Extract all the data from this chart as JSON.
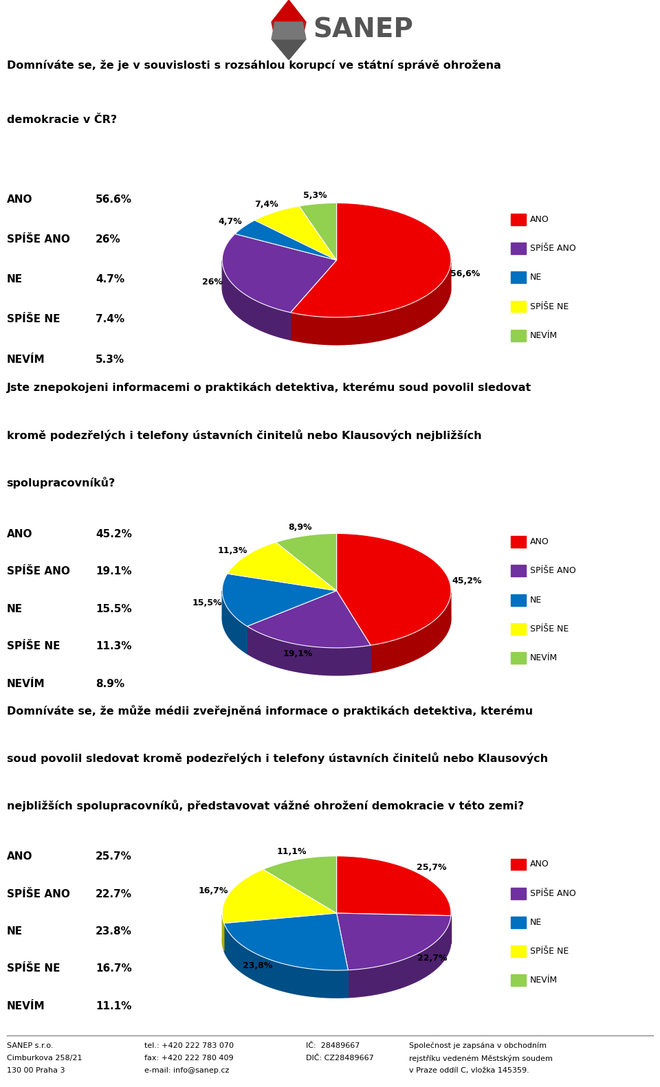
{
  "chart1": {
    "question_line1": "Domníváte se, že je v souvislosti s rozsáhlou korupcí ve státní správě ohrožena",
    "question_line2": "demokracie v ČR?",
    "labels": [
      "ANO",
      "SPÍŠE ANO",
      "NE",
      "SPÍŠE NE",
      "NEVÍM"
    ],
    "values": [
      56.6,
      26.0,
      4.7,
      7.4,
      5.3
    ],
    "colors": [
      "#EE0000",
      "#7030A0",
      "#0070C0",
      "#FFFF00",
      "#92D050"
    ],
    "pct_labels": [
      "56,6%",
      "26%",
      "4,7%",
      "7,4%",
      "5,3%"
    ],
    "stats_labels": [
      "ANO",
      "SPÍŠE ANO",
      "NE",
      "SPÍŠE NE",
      "NEVÍM"
    ],
    "stats_values": [
      "56.6%",
      "26%",
      "4.7%",
      "7.4%",
      "5.3%"
    ]
  },
  "chart2": {
    "question_line1": "Jste znepokojeni informacemi o praktikách detektiva, kterému soud povolil sledovat",
    "question_line2": "kromě podezřelých i telefony ústavních činitelů nebo Klausových nejbližších",
    "question_line3": "spolupracovníků?",
    "labels": [
      "ANO",
      "SPÍŠE ANO",
      "NE",
      "SPÍŠE NE",
      "NEVÍM"
    ],
    "values": [
      45.2,
      19.1,
      15.5,
      11.3,
      8.9
    ],
    "colors": [
      "#EE0000",
      "#7030A0",
      "#0070C0",
      "#FFFF00",
      "#92D050"
    ],
    "pct_labels": [
      "45,2%",
      "19,1%",
      "15,5%",
      "11,3%",
      "8,9%"
    ],
    "stats_labels": [
      "ANO",
      "SPÍŠE ANO",
      "NE",
      "SPÍŠE NE",
      "NEVÍM"
    ],
    "stats_values": [
      "45.2%",
      "19.1%",
      "15.5%",
      "11.3%",
      "8.9%"
    ]
  },
  "chart3": {
    "question_line1": "Domníváte se, že může médii zveřejněná informace o praktikách detektiva, kterému",
    "question_line2": "soud povolil sledovat kromě podezřelých i telefony ústavních činitelů nebo Klausových",
    "question_line3": "nejbližších spolupracovníků, představovat vážné ohrožení demokracie v této zemi?",
    "labels": [
      "ANO",
      "SPÍŠE ANO",
      "NE",
      "SPÍŠE NE",
      "NEVÍM"
    ],
    "values": [
      25.7,
      22.7,
      23.8,
      16.7,
      11.1
    ],
    "colors": [
      "#EE0000",
      "#7030A0",
      "#0070C0",
      "#FFFF00",
      "#92D050"
    ],
    "pct_labels": [
      "25,7%",
      "22,7%",
      "23,8%",
      "16,7%",
      "11,1%"
    ],
    "stats_labels": [
      "ANO",
      "SPÍŠE ANO",
      "NE",
      "SPÍŠE NE",
      "NEVÍM"
    ],
    "stats_values": [
      "25.7%",
      "22.7%",
      "23.8%",
      "16.7%",
      "11.1%"
    ]
  },
  "legend_labels": [
    "ANO",
    "SPÍŠE ANO",
    "NE",
    "SPÍŠE NE",
    "NEVÍM"
  ],
  "legend_colors": [
    "#EE0000",
    "#7030A0",
    "#0070C0",
    "#FFFF00",
    "#92D050"
  ],
  "footer": {
    "left": [
      "SANEP s.r.o.",
      "Cimburkova 258/21",
      "130 00 Praha 3"
    ],
    "mid": [
      "tel.: +420 222 783 070",
      "fax: +420 222 780 409",
      "e-mail: info@sanep.cz"
    ],
    "right1": [
      "IČ:  28489667",
      "DIČ: CZ28489667"
    ],
    "right2": [
      "Společnost je zapsána v obchodním",
      "rejstříku vedeném Městským soudem",
      "v Praze oddíl C, vložka 145359."
    ]
  },
  "bg_color": "#FFFFFF"
}
